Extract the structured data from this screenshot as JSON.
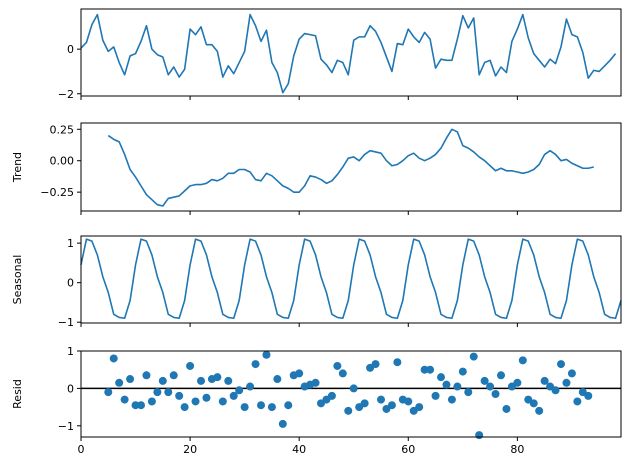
{
  "chart_data": [
    {
      "type": "line",
      "ylabel": "",
      "xlim": [
        0,
        99
      ],
      "ylim": [
        -2.1,
        1.8
      ],
      "yticks": [
        -2,
        0
      ],
      "yticklabels": [
        "−2",
        "0"
      ],
      "xticks": [
        0,
        20,
        40,
        60,
        80
      ],
      "show_xticklabels": false,
      "color": "#1f77b4",
      "x_start": 0,
      "values": [
        0.05,
        0.3,
        1.1,
        1.55,
        0.4,
        -0.1,
        0.1,
        -0.6,
        -1.15,
        -0.3,
        -0.2,
        0.35,
        1.05,
        0.0,
        -0.25,
        -0.35,
        -1.15,
        -0.8,
        -1.25,
        -0.9,
        0.9,
        0.65,
        1.0,
        0.2,
        0.2,
        -0.1,
        -1.25,
        -0.75,
        -1.1,
        -0.6,
        -0.1,
        1.55,
        1.05,
        0.35,
        0.85,
        -0.6,
        -1.05,
        -1.95,
        -1.55,
        -0.3,
        0.45,
        0.7,
        0.65,
        0.6,
        -0.45,
        -0.7,
        -1.05,
        -0.5,
        -0.6,
        -1.15,
        0.4,
        0.55,
        0.55,
        1.05,
        0.8,
        0.3,
        -0.35,
        -1.0,
        0.25,
        0.2,
        0.9,
        0.55,
        0.3,
        0.75,
        0.45,
        -0.85,
        -0.45,
        -0.5,
        -0.5,
        0.45,
        1.5,
        0.95,
        1.4,
        -1.15,
        -0.6,
        -0.5,
        -1.2,
        -0.8,
        -1.05,
        0.35,
        0.9,
        1.55,
        0.5,
        -0.2,
        -0.5,
        -0.8,
        -0.45,
        -0.65,
        0.1,
        1.35,
        0.65,
        0.55,
        -0.15,
        -1.3,
        -0.95,
        -1.0,
        -0.75,
        -0.5,
        -0.2
      ]
    },
    {
      "type": "line",
      "ylabel": "Trend",
      "xlim": [
        0,
        99
      ],
      "ylim": [
        -0.4,
        0.3
      ],
      "yticks": [
        -0.25,
        0.0,
        0.25
      ],
      "yticklabels": [
        "−0.25",
        "0.00",
        "0.25"
      ],
      "xticks": [
        0,
        20,
        40,
        60,
        80
      ],
      "show_xticklabels": false,
      "color": "#1f77b4",
      "x_start": 5,
      "values": [
        0.2,
        0.17,
        0.15,
        0.05,
        -0.07,
        -0.13,
        -0.2,
        -0.27,
        -0.31,
        -0.35,
        -0.36,
        -0.3,
        -0.29,
        -0.28,
        -0.24,
        -0.2,
        -0.19,
        -0.19,
        -0.18,
        -0.15,
        -0.16,
        -0.14,
        -0.1,
        -0.1,
        -0.07,
        -0.07,
        -0.09,
        -0.15,
        -0.16,
        -0.1,
        -0.12,
        -0.16,
        -0.2,
        -0.22,
        -0.25,
        -0.25,
        -0.2,
        -0.12,
        -0.13,
        -0.15,
        -0.18,
        -0.16,
        -0.11,
        -0.05,
        0.02,
        0.03,
        0.0,
        0.05,
        0.08,
        0.07,
        0.06,
        0.0,
        -0.04,
        -0.03,
        0.0,
        0.04,
        0.06,
        0.02,
        0.0,
        0.02,
        0.05,
        0.1,
        0.18,
        0.25,
        0.23,
        0.12,
        0.1,
        0.07,
        0.03,
        0.0,
        -0.04,
        -0.08,
        -0.06,
        -0.08,
        -0.08,
        -0.09,
        -0.1,
        -0.09,
        -0.07,
        -0.03,
        0.05,
        0.08,
        0.05,
        0.0,
        0.01,
        -0.02,
        -0.04,
        -0.06,
        -0.06,
        -0.05
      ]
    },
    {
      "type": "line",
      "ylabel": "Seasonal",
      "xlim": [
        0,
        99
      ],
      "ylim": [
        -1.02,
        1.18
      ],
      "yticks": [
        -1,
        0,
        1
      ],
      "yticklabels": [
        "−1",
        "0",
        "1"
      ],
      "xticks": [
        0,
        20,
        40,
        60,
        80
      ],
      "show_xticklabels": false,
      "color": "#1f77b4",
      "x_start": 0,
      "period": 10,
      "values_one_period": [
        0.45,
        1.1,
        1.05,
        0.7,
        0.15,
        -0.25,
        -0.8,
        -0.88,
        -0.9,
        -0.45
      ]
    },
    {
      "type": "scatter",
      "ylabel": "Resid",
      "xlim": [
        0,
        99
      ],
      "ylim": [
        -1.3,
        1.0
      ],
      "yticks": [
        -1,
        0,
        1
      ],
      "yticklabels": [
        "−1",
        "0",
        "1"
      ],
      "xticks": [
        0,
        20,
        40,
        60,
        80
      ],
      "xticklabels": [
        "0",
        "20",
        "40",
        "60",
        "80"
      ],
      "show_xticklabels": true,
      "color": "#1f77b4",
      "zero_line": true,
      "x_start": 5,
      "values": [
        -0.1,
        0.8,
        0.15,
        -0.3,
        0.25,
        -0.45,
        -0.45,
        0.35,
        -0.35,
        -0.1,
        0.2,
        -0.1,
        0.35,
        -0.2,
        -0.5,
        0.6,
        -0.35,
        0.2,
        -0.25,
        0.25,
        0.3,
        -0.35,
        0.2,
        -0.2,
        -0.05,
        -0.5,
        0.05,
        0.65,
        -0.45,
        0.9,
        -0.5,
        0.25,
        -0.95,
        -0.45,
        0.35,
        0.4,
        0.05,
        0.1,
        0.15,
        -0.4,
        -0.3,
        -0.2,
        0.6,
        0.4,
        -0.6,
        0.0,
        -0.5,
        -0.4,
        0.55,
        0.65,
        -0.3,
        -0.55,
        -0.45,
        0.7,
        -0.3,
        -0.35,
        -0.6,
        -0.5,
        0.5,
        0.5,
        -0.2,
        0.3,
        0.1,
        -0.3,
        0.05,
        0.45,
        -0.1,
        0.85,
        -1.25,
        0.2,
        0.05,
        -0.15,
        0.35,
        -0.55,
        0.05,
        0.15,
        0.75,
        -0.3,
        -0.4,
        -0.6,
        0.2,
        0.05,
        -0.05,
        0.65,
        0.15,
        0.4,
        -0.35,
        -0.1,
        -0.2
      ]
    }
  ]
}
